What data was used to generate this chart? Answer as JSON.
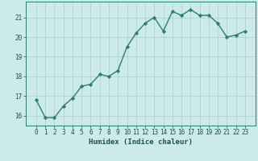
{
  "title": "",
  "xlabel": "Humidex (Indice chaleur)",
  "x": [
    0,
    1,
    2,
    3,
    4,
    5,
    6,
    7,
    8,
    9,
    10,
    11,
    12,
    13,
    14,
    15,
    16,
    17,
    18,
    19,
    20,
    21,
    22,
    23
  ],
  "y": [
    16.8,
    15.9,
    15.9,
    16.5,
    16.9,
    17.5,
    17.6,
    18.1,
    18.0,
    18.3,
    19.5,
    20.2,
    20.7,
    21.0,
    20.3,
    21.3,
    21.1,
    21.4,
    21.1,
    21.1,
    20.7,
    20.0,
    20.1,
    20.3
  ],
  "line_color": "#2e7d6e",
  "marker": "D",
  "marker_size": 2.2,
  "background_color": "#cceae8",
  "grid_color": "#aacfcd",
  "axis_color": "#2e7d6e",
  "tick_label_color": "#1a5050",
  "xlabel_color": "#1a5050",
  "ylim": [
    15.5,
    21.8
  ],
  "yticks": [
    16,
    17,
    18,
    19,
    20,
    21
  ],
  "xticks": [
    0,
    1,
    2,
    3,
    4,
    5,
    6,
    7,
    8,
    9,
    10,
    11,
    12,
    13,
    14,
    15,
    16,
    17,
    18,
    19,
    20,
    21,
    22,
    23
  ],
  "line_width": 1.0,
  "tick_fontsize": 5.5,
  "xlabel_fontsize": 6.5
}
